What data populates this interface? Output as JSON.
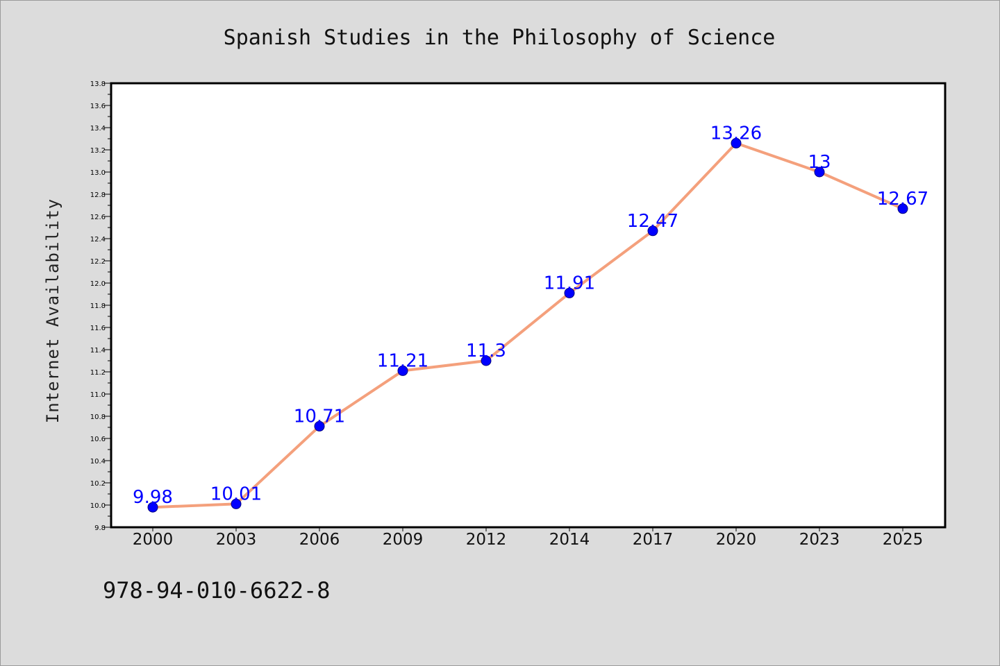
{
  "chart_data": {
    "type": "line",
    "title": "Spanish Studies in the Philosophy of Science",
    "xlabel": "",
    "ylabel": "Internet Availability",
    "categories": [
      "2000",
      "2003",
      "2006",
      "2009",
      "2012",
      "2014",
      "2017",
      "2020",
      "2023",
      "2025"
    ],
    "values": [
      9.98,
      10.01,
      10.71,
      11.21,
      11.3,
      11.91,
      12.47,
      13.26,
      13,
      12.67
    ],
    "data_labels": [
      "9.98",
      "10.01",
      "10.71",
      "11.21",
      "11.3",
      "11.91",
      "12.47",
      "13.26",
      "13",
      "12.67"
    ],
    "ylim": [
      9.8,
      13.8
    ],
    "yticks": [
      "9.8",
      "10.0",
      "10.2",
      "10.4",
      "10.6",
      "10.8",
      "11.0",
      "11.2",
      "11.4",
      "11.6",
      "11.8",
      "12.0",
      "12.2",
      "12.4",
      "12.6",
      "12.8",
      "13.0",
      "13.2",
      "13.4",
      "13.6",
      "13.8"
    ],
    "grid": false,
    "legend": "none",
    "colors": {
      "line": "#f4a07c",
      "marker": "#0000ff",
      "marker_edge": "#000080",
      "data_label": "#0000ff",
      "background": "#dcdcdc",
      "plot_background": "#ffffff"
    }
  },
  "footer": {
    "isbn": "978-94-010-6622-8"
  }
}
